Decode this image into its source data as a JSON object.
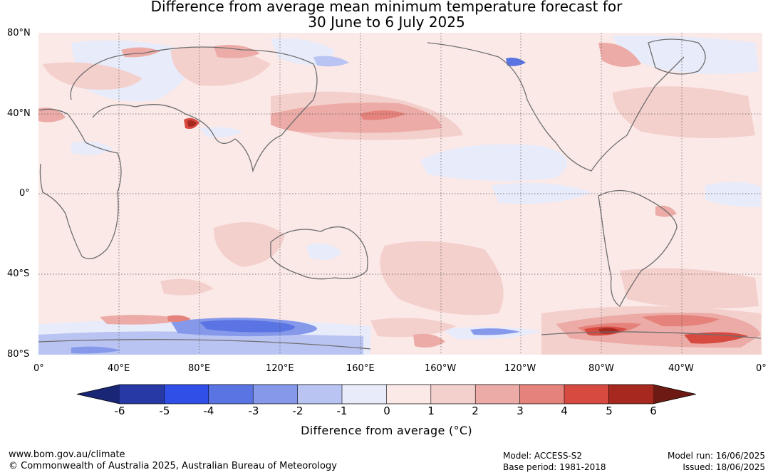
{
  "title": {
    "line1": "Difference from average mean minimum temperature forecast for",
    "line2": "30 June to 6 July 2025"
  },
  "map": {
    "projection": "equirectangular",
    "lon_range": [
      0,
      360
    ],
    "lat_range": [
      -80,
      80
    ],
    "grid": true,
    "lat_labels": [
      "80°N",
      "40°N",
      "0°",
      "40°S",
      "80°S"
    ],
    "lon_labels": [
      "0°",
      "40°E",
      "80°E",
      "120°E",
      "160°E",
      "160°W",
      "120°W",
      "80°W",
      "40°W",
      "0°"
    ]
  },
  "colorbar": {
    "ticks": [
      "-6",
      "-5",
      "-4",
      "-3",
      "-2",
      "-1",
      "0",
      "1",
      "2",
      "3",
      "4",
      "5",
      "6"
    ],
    "colors": [
      "#2639a5",
      "#2f4fe6",
      "#5a74e3",
      "#8598ea",
      "#b9c4f2",
      "#e7ebfa",
      "#fbe9e8",
      "#f4d0cd",
      "#ecaba6",
      "#e4827b",
      "#d64a40",
      "#a6281f"
    ],
    "under_color": "#192675",
    "over_color": "#6e1a14",
    "label": "Difference from average (°C)"
  },
  "footer": {
    "url": "www.bom.gov.au/climate",
    "copyright": "© Commonwealth of Australia 2025, Australian Bureau of Meteorology",
    "model": "Model: ACCESS-S2",
    "base_period": "Base period: 1981-2018",
    "model_run": "Model run: 16/06/2025",
    "issued": "Issued: 18/06/2025"
  }
}
